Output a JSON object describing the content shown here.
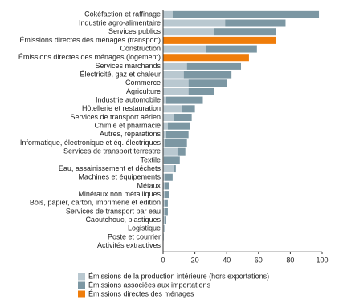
{
  "chart_data": {
    "type": "stacked-horizontal-bar",
    "categories": [
      "Cokéfaction et raffinage",
      "Industrie agro-alimentaire",
      "Services publics",
      "Émissions directes des ménages (transport)",
      "Construction",
      "Émissions directes des ménages (logement)",
      "Services marchands",
      "Électricité, gaz et chaleur",
      "Commerce",
      "Agriculture",
      "Industrie automobile",
      "Hôtellerie et restauration",
      "Services de transport aérien",
      "Chimie et pharmacie",
      "Autres, réparations",
      "Informatique, électronique et éq. électriques",
      "Services de transport terrestre",
      "Textile",
      "Eau, assainissement et déchets",
      "Machines et équipements",
      "Métaux",
      "Minéraux non métalliques",
      "Bois, papier, carton, imprimerie et édition",
      "Services de transport par eau",
      "Caoutchouc, plastiques",
      "Logistique",
      "Poste et courrier",
      "Activités extractives"
    ],
    "series": [
      {
        "name": "Émissions de la production intérieure (hors exportations)",
        "color": "#b9c8d0",
        "values": [
          6,
          39,
          32,
          null,
          27,
          null,
          15,
          13,
          16,
          16,
          2,
          12,
          7,
          3,
          2,
          1,
          9,
          0.5,
          7,
          1,
          1,
          1,
          1,
          1,
          1,
          1,
          0.5,
          0
        ]
      },
      {
        "name": "Émissions associées aux importations",
        "color": "#7c97a3",
        "values": [
          92,
          38,
          39,
          null,
          32,
          null,
          34,
          30,
          24,
          16,
          23,
          8,
          11,
          14,
          14,
          14,
          5,
          10,
          1,
          5,
          3,
          3,
          2,
          2,
          1,
          0.5,
          0,
          0
        ]
      },
      {
        "name": "Émissions directes des ménages",
        "color": "#ef7d0b",
        "values": [
          null,
          null,
          null,
          71,
          null,
          54,
          null,
          null,
          null,
          null,
          null,
          null,
          null,
          null,
          null,
          null,
          null,
          null,
          null,
          null,
          null,
          null,
          null,
          null,
          null,
          null,
          null,
          null
        ]
      }
    ],
    "xlim": [
      0,
      100
    ],
    "xticks": [
      0,
      20,
      40,
      60,
      80,
      100
    ]
  }
}
